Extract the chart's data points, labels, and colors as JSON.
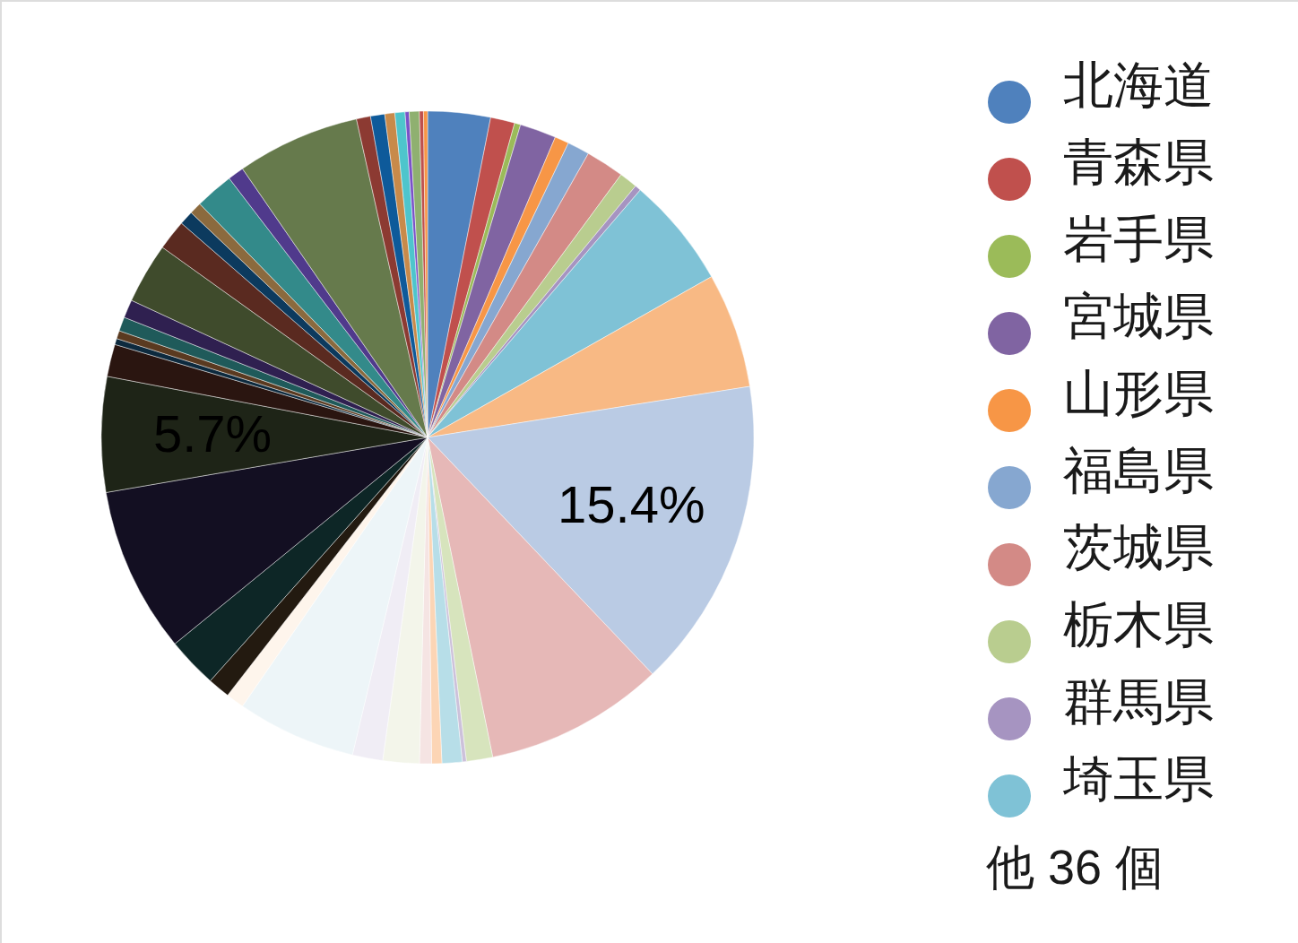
{
  "chart_data": {
    "type": "pie",
    "categories": [
      "北海道",
      "青森県",
      "岩手県",
      "宮城県",
      "山形県",
      "福島県",
      "茨城県",
      "栃木県",
      "群馬県",
      "埼玉県",
      null,
      null,
      null,
      null,
      null,
      null,
      null,
      null,
      null,
      null,
      null,
      null,
      null,
      null,
      null,
      null,
      null,
      null,
      null,
      null,
      null,
      null,
      null,
      null,
      null,
      null,
      null,
      null,
      null,
      null,
      null,
      null,
      null,
      null,
      null,
      null
    ],
    "values": [
      3.1,
      1.2,
      0.3,
      1.8,
      0.7,
      1.1,
      1.9,
      0.9,
      0.3,
      5.5,
      5.7,
      15.4,
      8.9,
      1.3,
      0.2,
      1.0,
      0.5,
      0.6,
      1.8,
      1.5,
      5.9,
      0.9,
      1.1,
      2.5,
      8.2,
      5.7,
      1.6,
      0.3,
      0.4,
      0.7,
      0.9,
      3.0,
      1.5,
      0.7,
      0.6,
      1.9,
      0.8,
      6.1,
      0.7,
      0.7,
      0.5,
      0.5,
      0.2,
      0.5,
      0.2,
      0.2
    ],
    "colors": [
      "#4f81bd",
      "#c0504d",
      "#9bbb59",
      "#8064a2",
      "#f79646",
      "#86a7d0",
      "#d38a86",
      "#b9cd8f",
      "#a694c1",
      "#7fc2d6",
      "#f8b984",
      "#bacbe4",
      "#e6b8b7",
      "#d7e4bd",
      "#ccc1da",
      "#b7dee8",
      "#fcd5b5",
      "#f5e4e3",
      "#f3f5ea",
      "#f0edf5",
      "#edf5f8",
      "#fef5ec",
      "#231a10",
      "#0d2626",
      "#130f22",
      "#1e2417",
      "#2a1510",
      "#0d2a3e",
      "#5a3a20",
      "#1f5a5a",
      "#2f2050",
      "#3f4b2c",
      "#5a2a20",
      "#0c3a5e",
      "#8b6a3e",
      "#338a8a",
      "#503a8c",
      "#667a4c",
      "#8c3a32",
      "#0e5a9a",
      "#c88a4a",
      "#4ec5cc",
      "#7a52c8",
      "#8fb070",
      "#c0504d",
      "#f79646"
    ],
    "value_labels": [
      null,
      null,
      null,
      null,
      null,
      null,
      null,
      null,
      null,
      null,
      null,
      "15.4%",
      null,
      null,
      null,
      null,
      null,
      null,
      null,
      null,
      null,
      null,
      null,
      null,
      null,
      "5.7%",
      null,
      null,
      null,
      null,
      null,
      null,
      null,
      null,
      null,
      null,
      null,
      null,
      null,
      null,
      null,
      null,
      null,
      null,
      null,
      null
    ],
    "legend": "right",
    "annotations": [
      "他 36 個"
    ]
  }
}
